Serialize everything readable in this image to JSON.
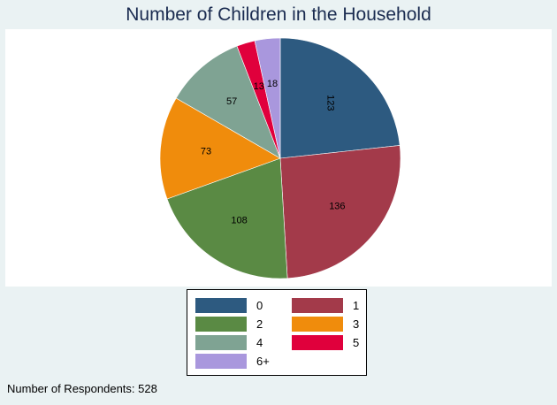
{
  "chart_data": {
    "type": "pie",
    "title": "Number of Children in the Household",
    "categories": [
      "0",
      "1",
      "2",
      "3",
      "4",
      "5",
      "6+"
    ],
    "values": [
      123,
      136,
      108,
      73,
      57,
      13,
      18
    ],
    "slice_labels": [
      "123",
      "136",
      "108",
      "73",
      "57",
      "13",
      "18"
    ],
    "colors": [
      "#2d5a80",
      "#a33a4a",
      "#5a8a44",
      "#f08c0c",
      "#7fa393",
      "#e0003c",
      "#a997dd"
    ],
    "legend": {
      "placement": "bottom",
      "entries": [
        "0",
        "1",
        "2",
        "3",
        "4",
        "5",
        "6+"
      ]
    }
  },
  "footer": {
    "note": "Number of Respondents: 528"
  }
}
